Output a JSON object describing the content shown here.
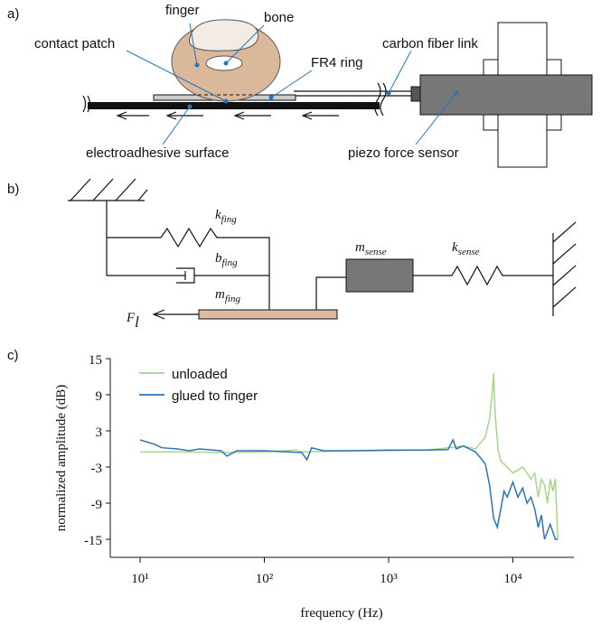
{
  "diagram_a": {
    "panel_label": "a)",
    "labels": {
      "finger": "finger",
      "bone": "bone",
      "contact_patch": "contact patch",
      "fr4_ring": "FR4 ring",
      "carbon_fiber_link": "carbon fiber link",
      "electroadhesive_surface": "electroadhesive surface",
      "piezo_force_sensor": "piezo force sensor"
    }
  },
  "diagram_b": {
    "panel_label": "b)",
    "k_fing": {
      "symbol": "k",
      "subscript": "fing"
    },
    "b_fing": {
      "symbol": "b",
      "subscript": "fing"
    },
    "m_fing": {
      "symbol": "m",
      "subscript": "fing"
    },
    "m_sense": {
      "symbol": "m",
      "subscript": "sense"
    },
    "k_sense": {
      "symbol": "k",
      "subscript": "sense"
    },
    "force": {
      "symbol": "F",
      "subscript": "l"
    }
  },
  "chart_data": {
    "type": "line",
    "panel_label": "c)",
    "x_label": "frequency (Hz)",
    "y_label": "normalized amplitude (dB)",
    "x_scale": "log",
    "xlim": [
      5.75,
      31000
    ],
    "ylim": [
      -18,
      15
    ],
    "xticks": [
      {
        "value": 10,
        "label": "10¹"
      },
      {
        "value": 100,
        "label": "10²"
      },
      {
        "value": 1000,
        "label": "10³"
      },
      {
        "value": 10000,
        "label": "10⁴"
      }
    ],
    "yticks": [
      15,
      9,
      3,
      -3,
      -9,
      -15
    ],
    "legend": "upper left",
    "series": [
      {
        "name": "unloaded",
        "color": "#a8d48c",
        "x": [
          10,
          20,
          50,
          100,
          180,
          200,
          300,
          500,
          1000,
          2000,
          3000,
          4000,
          5000,
          6000,
          6500,
          6800,
          7000,
          7200,
          7600,
          8000,
          9000,
          10000,
          11000,
          12000,
          13000,
          14000,
          15000,
          16000,
          17000,
          18000,
          19000,
          20000,
          21000,
          22000,
          23000
        ],
        "values": [
          -0.5,
          -0.5,
          -0.6,
          -0.5,
          -0.2,
          -0.5,
          -0.4,
          -0.3,
          -0.3,
          -0.2,
          0.2,
          0.5,
          0,
          2,
          5,
          9,
          12.5,
          6,
          0,
          -2,
          -3,
          -4,
          -3.5,
          -3,
          -4,
          -5,
          -4,
          -8,
          -5,
          -6,
          -9,
          -5,
          -7,
          -5,
          -15
        ]
      },
      {
        "name": "glued to finger",
        "color": "#2a75b8",
        "x": [
          10,
          13,
          15,
          20,
          25,
          30,
          45,
          50,
          60,
          100,
          200,
          220,
          240,
          300,
          500,
          1000,
          2000,
          3000,
          3300,
          3500,
          4000,
          5000,
          5500,
          6000,
          6500,
          7000,
          7500,
          8000,
          8500,
          9000,
          10000,
          11000,
          12000,
          13000,
          14000,
          15000,
          16000,
          17000,
          18000,
          20000,
          22000,
          23000
        ],
        "values": [
          1.5,
          0.8,
          0.2,
          0,
          -0.3,
          0,
          -0.3,
          -1.2,
          -0.3,
          -0.3,
          -0.6,
          -1.8,
          0.2,
          -0.3,
          -0.3,
          -0.2,
          -0.2,
          -0.1,
          1.5,
          0,
          0.5,
          -0.5,
          -1.5,
          -2.5,
          -6,
          -11.5,
          -13,
          -10,
          -7,
          -8,
          -5.5,
          -8,
          -6.5,
          -9,
          -8,
          -10,
          -13,
          -11,
          -15,
          -12.5,
          -15,
          -15
        ]
      }
    ]
  }
}
